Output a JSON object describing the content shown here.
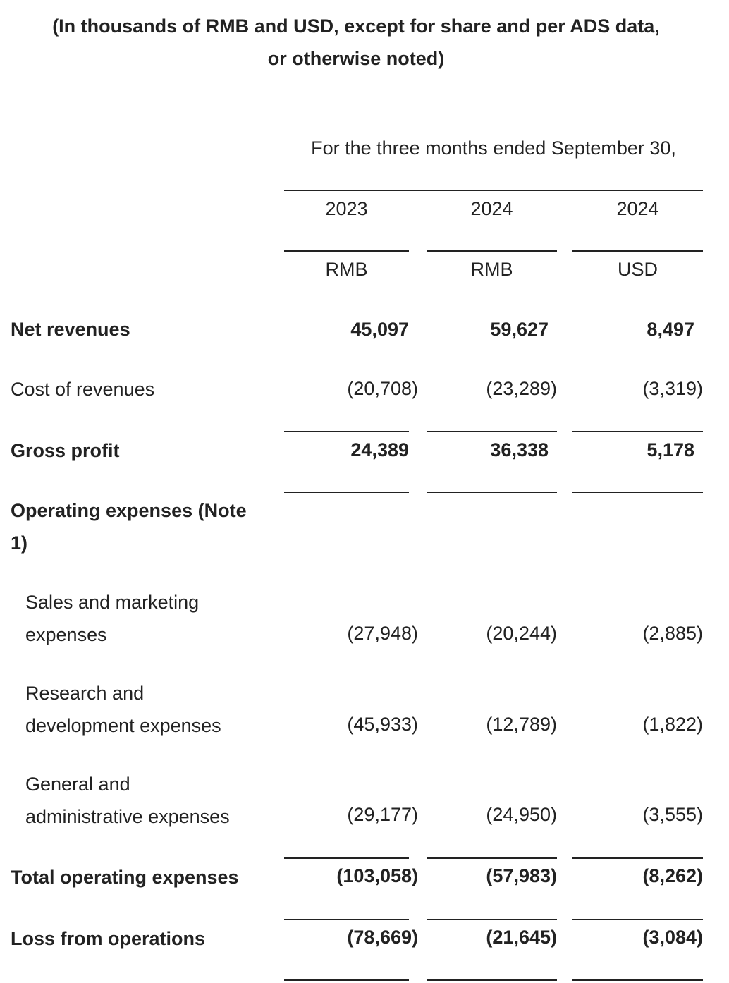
{
  "header": {
    "title_line1": "(In thousands of RMB and USD, except for share and per ADS data,",
    "title_line2": "or otherwise noted)",
    "period": "For the three months ended September 30,"
  },
  "columns": {
    "years": [
      "2023",
      "2024",
      "2024"
    ],
    "currencies": [
      "RMB",
      "RMB",
      "USD"
    ]
  },
  "rows": {
    "net_revenues": {
      "label": "Net revenues",
      "values": [
        "45,097",
        "59,627",
        "8,497"
      ]
    },
    "cost_of_revenues": {
      "label": "Cost of revenues",
      "values": [
        "(20,708)",
        "(23,289)",
        "(3,319)"
      ]
    },
    "gross_profit": {
      "label": "Gross profit",
      "values": [
        "24,389",
        "36,338",
        "5,178"
      ]
    },
    "operating_expenses": {
      "label_line1": "Operating expenses (Note",
      "label_line2": "1)"
    },
    "sales_marketing": {
      "label_line1": "Sales and marketing",
      "label_line2": "expenses",
      "values": [
        "(27,948)",
        "(20,244)",
        "(2,885)"
      ]
    },
    "research_development": {
      "label_line1": "Research and",
      "label_line2": "development expenses",
      "values": [
        "(45,933)",
        "(12,789)",
        "(1,822)"
      ]
    },
    "general_admin": {
      "label_line1": "General and",
      "label_line2": "administrative expenses",
      "values": [
        "(29,177)",
        "(24,950)",
        "(3,555)"
      ]
    },
    "total_operating_expenses": {
      "label": "Total operating expenses",
      "values": [
        "(103,058)",
        "(57,983)",
        "(8,262)"
      ]
    },
    "loss_from_operations": {
      "label": "Loss from operations",
      "values": [
        "(78,669)",
        "(21,645)",
        "(3,084)"
      ]
    }
  }
}
